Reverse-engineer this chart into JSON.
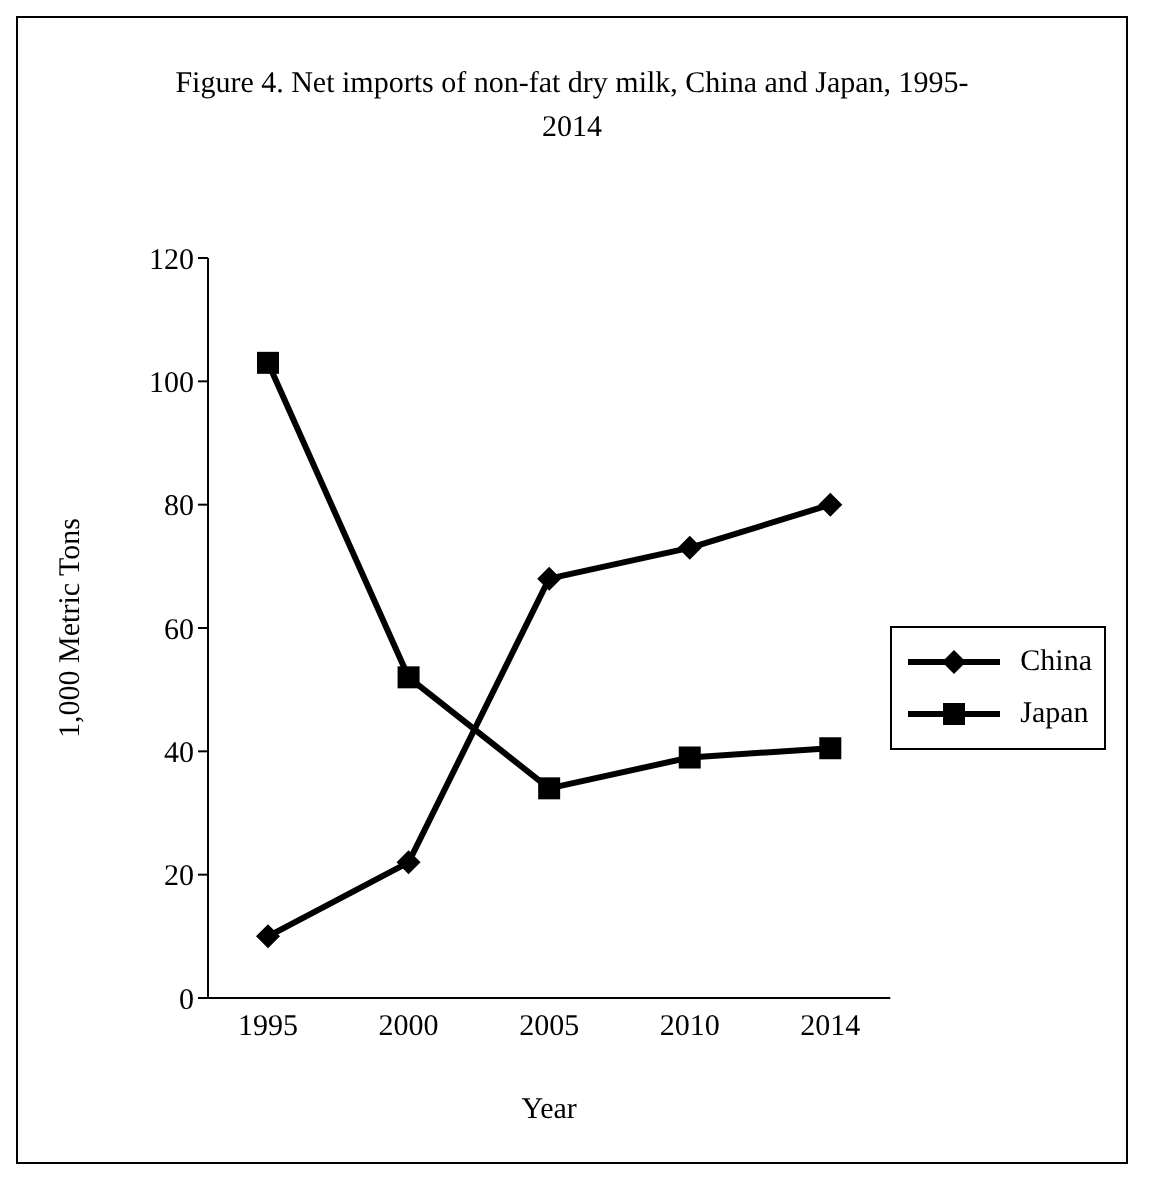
{
  "chart_data": {
    "type": "line",
    "title": "Figure 4. Net imports of non-fat dry milk, China and Japan, 1995-2014",
    "xlabel": "Year",
    "ylabel": "1,000 Metric Tons",
    "categories": [
      "1995",
      "2000",
      "2005",
      "2010",
      "2014"
    ],
    "series": [
      {
        "name": "China",
        "color": "#000000",
        "marker": "diamond",
        "values": [
          10,
          22,
          68,
          73,
          80
        ]
      },
      {
        "name": "Japan",
        "color": "#000000",
        "marker": "square",
        "values": [
          103,
          52,
          34,
          39,
          40.5
        ]
      }
    ],
    "ylim": [
      0,
      120
    ],
    "yticks": [
      0,
      20,
      40,
      60,
      80,
      100,
      120
    ],
    "grid": false,
    "legend": "right",
    "line_style": "solid"
  }
}
